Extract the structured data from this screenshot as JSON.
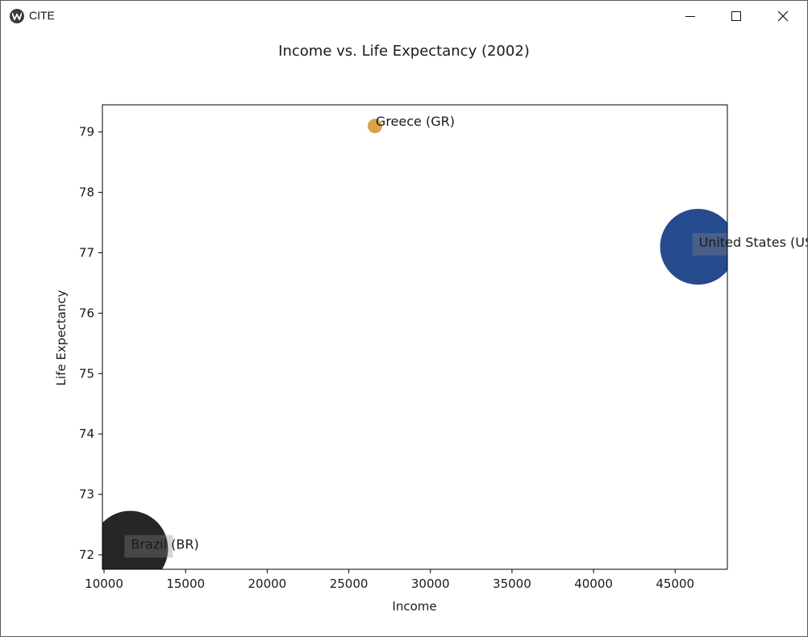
{
  "window": {
    "title": "CITE",
    "controls": {
      "minimize_icon": "minimize-icon",
      "maximize_icon": "maximize-icon",
      "close_icon": "close-icon"
    }
  },
  "chart_data": {
    "type": "scatter",
    "title": "Income vs. Life Expectancy (2002)",
    "xlabel": "Income",
    "ylabel": "Life Expectancy",
    "xlim": [
      9900,
      48200
    ],
    "ylim": [
      71.76,
      79.45
    ],
    "xticks": [
      10000,
      15000,
      20000,
      25000,
      30000,
      35000,
      40000,
      45000
    ],
    "yticks": [
      72,
      73,
      74,
      75,
      76,
      77,
      78,
      79
    ],
    "grid": false,
    "points": [
      {
        "label": "Greece (GR)",
        "x": 26600,
        "y": 79.1,
        "size": "small",
        "color": "#d4922a"
      },
      {
        "label": "United States (US)",
        "x": 46400,
        "y": 77.1,
        "size": "large",
        "color": "#002a7a"
      },
      {
        "label": "Brazil (BR)",
        "x": 11600,
        "y": 72.1,
        "size": "large",
        "color": "#000000"
      }
    ]
  }
}
